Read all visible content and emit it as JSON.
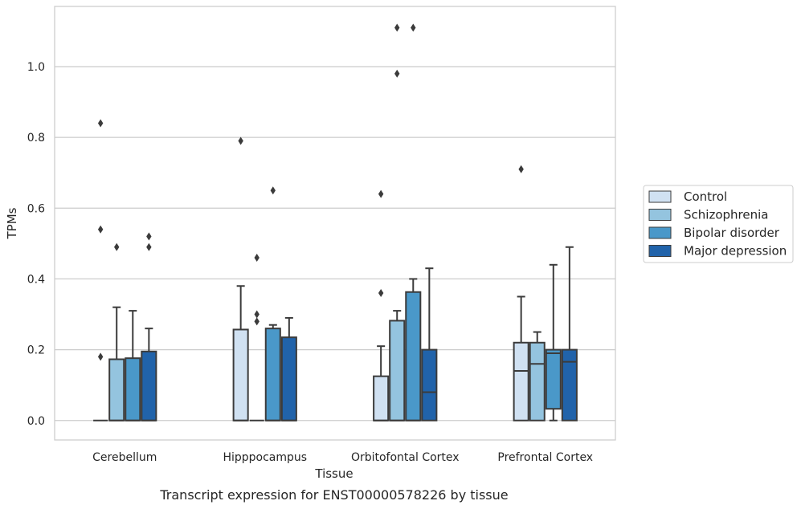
{
  "caption": "Transcript expression for ENST00000578226 by tissue",
  "chart_data": {
    "type": "box",
    "title": "",
    "xlabel": "Tissue",
    "ylabel": "TPMs",
    "ylim": [
      -0.055,
      1.17
    ],
    "yticks": [
      "0.0",
      "0.2",
      "0.4",
      "0.6",
      "0.8",
      "1.0"
    ],
    "grid": "horizontal",
    "legend_position": "right",
    "categories": [
      "Cerebellum",
      "Hipppocampus",
      "Orbitofontal Cortex",
      "Prefrontal Cortex"
    ],
    "series": [
      {
        "name": "Control",
        "color": "#d0e1f2",
        "boxes": [
          {
            "q1": 0,
            "median": 0,
            "q3": 0,
            "whisker_low": 0,
            "whisker_high": 0,
            "outliers": [
              0.18,
              0.54,
              0.84
            ]
          },
          {
            "q1": 0,
            "median": 0,
            "q3": 0.257,
            "whisker_low": 0,
            "whisker_high": 0.38,
            "outliers": [
              0.79
            ]
          },
          {
            "q1": 0,
            "median": 0,
            "q3": 0.125,
            "whisker_low": 0,
            "whisker_high": 0.21,
            "outliers": [
              0.36,
              0.64
            ]
          },
          {
            "q1": 0,
            "median": 0.14,
            "q3": 0.22,
            "whisker_low": 0,
            "whisker_high": 0.35,
            "outliers": [
              0.71
            ]
          }
        ]
      },
      {
        "name": "Schizophrenia",
        "color": "#94c4df",
        "boxes": [
          {
            "q1": 0,
            "median": 0,
            "q3": 0.173,
            "whisker_low": 0,
            "whisker_high": 0.32,
            "outliers": [
              0.49
            ]
          },
          {
            "q1": 0,
            "median": 0,
            "q3": 0,
            "whisker_low": 0,
            "whisker_high": 0,
            "outliers": [
              0.28,
              0.3,
              0.46
            ]
          },
          {
            "q1": 0,
            "median": 0,
            "q3": 0.282,
            "whisker_low": 0,
            "whisker_high": 0.31,
            "outliers": [
              0.98,
              1.11
            ]
          },
          {
            "q1": 0,
            "median": 0.16,
            "q3": 0.22,
            "whisker_low": 0,
            "whisker_high": 0.25,
            "outliers": []
          }
        ]
      },
      {
        "name": "Bipolar disorder",
        "color": "#4a98c9",
        "boxes": [
          {
            "q1": 0,
            "median": 0,
            "q3": 0.176,
            "whisker_low": 0,
            "whisker_high": 0.31,
            "outliers": []
          },
          {
            "q1": 0,
            "median": 0,
            "q3": 0.26,
            "whisker_low": 0,
            "whisker_high": 0.27,
            "outliers": [
              0.65
            ]
          },
          {
            "q1": 0,
            "median": 0,
            "q3": 0.363,
            "whisker_low": 0,
            "whisker_high": 0.4,
            "outliers": [
              1.11
            ]
          },
          {
            "q1": 0.033,
            "median": 0.19,
            "q3": 0.2,
            "whisker_low": 0,
            "whisker_high": 0.44,
            "outliers": []
          }
        ]
      },
      {
        "name": "Major depression",
        "color": "#2163aa",
        "boxes": [
          {
            "q1": 0,
            "median": 0,
            "q3": 0.195,
            "whisker_low": 0,
            "whisker_high": 0.26,
            "outliers": [
              0.49,
              0.52
            ]
          },
          {
            "q1": 0,
            "median": 0,
            "q3": 0.235,
            "whisker_low": 0,
            "whisker_high": 0.29,
            "outliers": []
          },
          {
            "q1": 0,
            "median": 0.08,
            "q3": 0.2,
            "whisker_low": 0,
            "whisker_high": 0.43,
            "outliers": []
          },
          {
            "q1": 0,
            "median": 0.166,
            "q3": 0.2,
            "whisker_low": 0,
            "whisker_high": 0.49,
            "outliers": []
          }
        ]
      }
    ]
  }
}
